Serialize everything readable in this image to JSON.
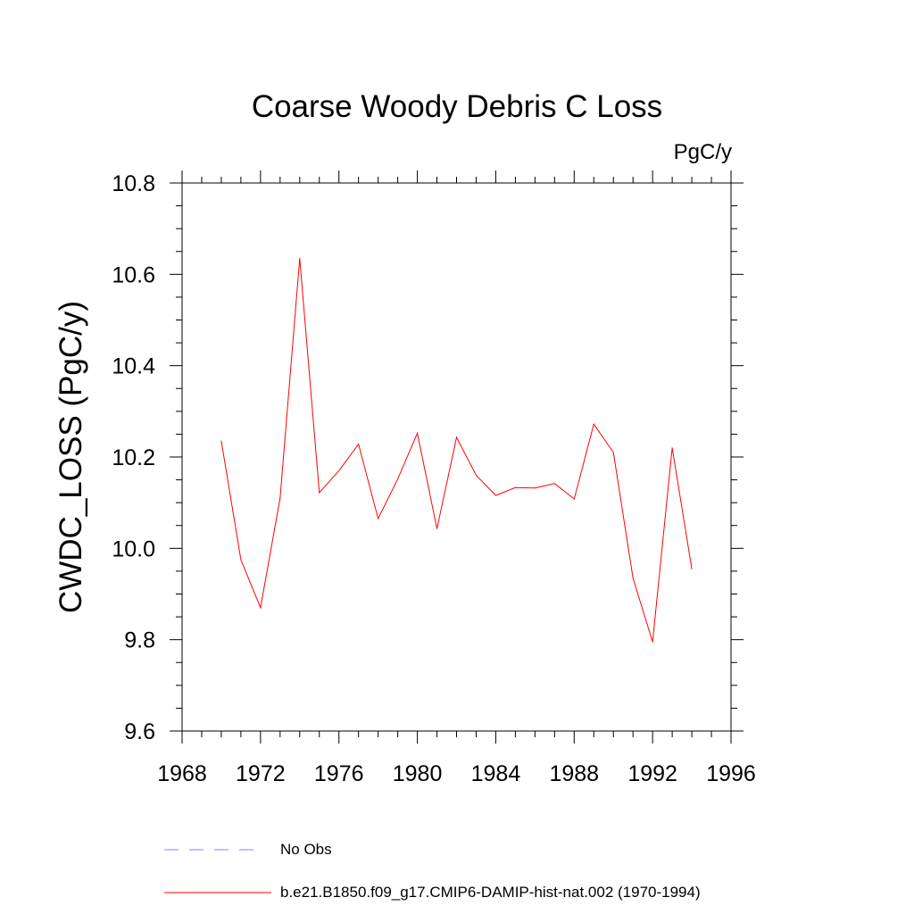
{
  "chart_data": {
    "type": "line",
    "title": "Coarse Woody Debris C Loss",
    "units_label": "PgC/y",
    "ylabel": "CWDC_LOSS  (PgC/y)",
    "xlim": [
      1968,
      1996
    ],
    "ylim": [
      9.6,
      10.8
    ],
    "x_ticks": [
      "1968",
      "1972",
      "1976",
      "1980",
      "1984",
      "1988",
      "1992",
      "1996"
    ],
    "y_ticks": [
      "9.6",
      "9.8",
      "10.0",
      "10.2",
      "10.4",
      "10.6",
      "10.8"
    ],
    "x": [
      1970,
      1971,
      1972,
      1973,
      1974,
      1975,
      1976,
      1977,
      1978,
      1979,
      1980,
      1981,
      1982,
      1983,
      1984,
      1985,
      1986,
      1987,
      1988,
      1989,
      1990,
      1991,
      1992,
      1993,
      1994
    ],
    "series": [
      {
        "name": "b.e21.B1850.f09_g17.CMIP6-DAMIP-hist-nat.002 (1970-1994)",
        "color": "#ff0000",
        "values": [
          10.235,
          9.975,
          9.87,
          10.11,
          10.635,
          10.122,
          10.17,
          10.228,
          10.065,
          10.152,
          10.252,
          10.043,
          10.243,
          10.16,
          10.116,
          10.133,
          10.132,
          10.142,
          10.108,
          10.272,
          10.21,
          9.935,
          9.795,
          10.22,
          9.955
        ]
      }
    ],
    "legend": [
      {
        "label": "No Obs",
        "color": "#8080ff",
        "style": "dashed"
      },
      {
        "label": "b.e21.B1850.f09_g17.CMIP6-DAMIP-hist-nat.002 (1970-1994)",
        "color": "#ff0000",
        "style": "solid"
      }
    ],
    "grid": false,
    "legend_position": "bottom-left"
  }
}
